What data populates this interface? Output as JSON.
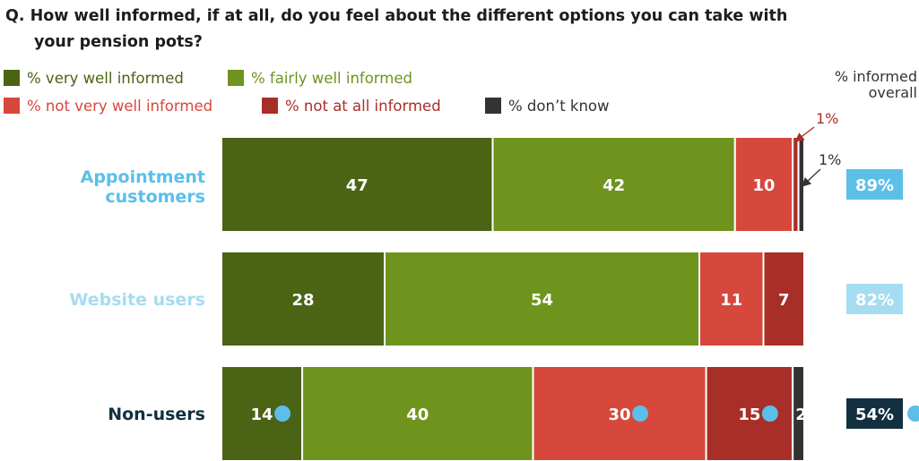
{
  "chart_data": {
    "type": "bar",
    "orientation": "horizontal",
    "stacked": true,
    "title": "Q. How well informed, if at all, do you feel about the different options you can take with your pension pots?",
    "categories": [
      "Appointment customers",
      "Website users",
      "Non-users"
    ],
    "category_colors": [
      "#5bbfe8",
      "#a5dcf2",
      "#12303f"
    ],
    "series": [
      {
        "name": "% very well informed",
        "color": "#4a6314",
        "values": [
          47,
          28,
          14
        ],
        "labels": [
          "47",
          "28",
          "14"
        ]
      },
      {
        "name": "% fairly well informed",
        "color": "#6e941d",
        "values": [
          42,
          54,
          40
        ],
        "labels": [
          "42",
          "54",
          "40"
        ]
      },
      {
        "name": "% not very well informed",
        "color": "#d6473c",
        "values": [
          10,
          11,
          30
        ],
        "labels": [
          "10",
          "11",
          "30"
        ]
      },
      {
        "name": "% not at all informed",
        "color": "#a82f27",
        "values": [
          1,
          7,
          15
        ],
        "labels": [
          "",
          "7",
          "15"
        ]
      },
      {
        "name": "% don’t know",
        "color": "#333333",
        "values": [
          1,
          0,
          2
        ],
        "labels": [
          "",
          "",
          "2"
        ]
      }
    ],
    "legend_color_text": [
      "#4a6314",
      "#6e941d",
      "#d6473c",
      "#a82f27",
      "#333333"
    ],
    "callouts": [
      {
        "category": 0,
        "series": 3,
        "text": "1%",
        "color": "#a82f27"
      },
      {
        "category": 0,
        "series": 4,
        "text": "1%",
        "color": "#333333"
      }
    ],
    "significance_markers": [
      {
        "category": 2,
        "series": 0
      },
      {
        "category": 2,
        "series": 2
      },
      {
        "category": 2,
        "series": 3
      },
      {
        "category": 2,
        "series": "overall"
      }
    ],
    "marker_color": "#5bbfe8",
    "overall_header": "% informed overall",
    "overall_header_lines": [
      "% informed",
      "overall"
    ],
    "overall": [
      "89%",
      "82%",
      "54%"
    ],
    "legend_placement": "top-left",
    "grid": false
  }
}
